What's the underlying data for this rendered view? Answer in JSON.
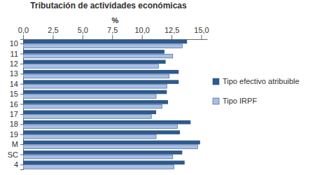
{
  "chart_data": {
    "type": "bar",
    "orientation": "horizontal",
    "title": "Tributación de actividades económicas",
    "x_label": "%",
    "categories": [
      "10",
      "11",
      "12",
      "13",
      "14",
      "15",
      "16",
      "17",
      "18",
      "19",
      "M",
      "SC",
      "4"
    ],
    "series": [
      {
        "name": "Tipo efectivo atribuible",
        "color": "#2e5a8c",
        "values": [
          13.8,
          11.9,
          12.0,
          13.1,
          13.1,
          12.1,
          12.2,
          11.2,
          14.1,
          13.2,
          14.9,
          13.4,
          13.6
        ]
      },
      {
        "name": "Tipo IRPF",
        "color": "#aabde4",
        "values": [
          13.4,
          12.6,
          11.4,
          12.3,
          12.1,
          11.2,
          11.7,
          10.8,
          13.0,
          11.2,
          14.7,
          12.6,
          12.7
        ]
      }
    ],
    "xlim": [
      0,
      15.5
    ],
    "xticks": [
      {
        "value": 0,
        "label": "0,0"
      },
      {
        "value": 2.5,
        "label": "2,5"
      },
      {
        "value": 5,
        "label": "5,0"
      },
      {
        "value": 7.5,
        "label": "7,5"
      },
      {
        "value": 10,
        "label": "10,0"
      },
      {
        "value": 12.5,
        "label": "12,5"
      },
      {
        "value": 15,
        "label": "15,0"
      }
    ],
    "grid": false,
    "legend": "right"
  }
}
